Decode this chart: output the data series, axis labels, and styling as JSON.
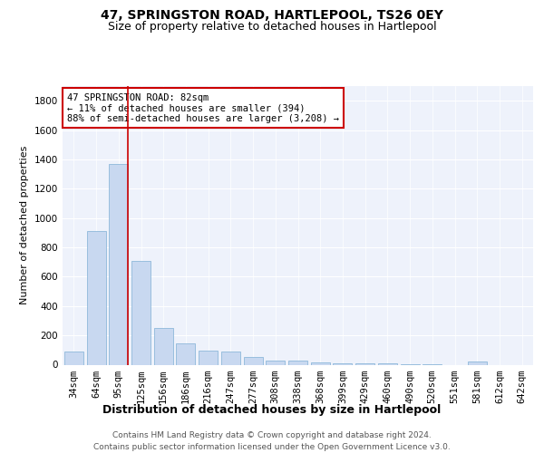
{
  "title1": "47, SPRINGSTON ROAD, HARTLEPOOL, TS26 0EY",
  "title2": "Size of property relative to detached houses in Hartlepool",
  "xlabel": "Distribution of detached houses by size in Hartlepool",
  "ylabel": "Number of detached properties",
  "categories": [
    "34sqm",
    "64sqm",
    "95sqm",
    "125sqm",
    "156sqm",
    "186sqm",
    "216sqm",
    "247sqm",
    "277sqm",
    "308sqm",
    "338sqm",
    "368sqm",
    "399sqm",
    "429sqm",
    "460sqm",
    "490sqm",
    "520sqm",
    "551sqm",
    "581sqm",
    "612sqm",
    "642sqm"
  ],
  "values": [
    90,
    910,
    1370,
    710,
    248,
    145,
    95,
    90,
    55,
    28,
    28,
    15,
    10,
    10,
    10,
    5,
    5,
    0,
    20,
    0,
    0
  ],
  "bar_color": "#c8d8f0",
  "bar_edge_color": "#7fafd4",
  "red_line_x": 2.43,
  "annotation_text": "47 SPRINGSTON ROAD: 82sqm\n← 11% of detached houses are smaller (394)\n88% of semi-detached houses are larger (3,208) →",
  "annotation_box_color": "#ffffff",
  "annotation_box_edge_color": "#cc0000",
  "footer": "Contains HM Land Registry data © Crown copyright and database right 2024.\nContains public sector information licensed under the Open Government Licence v3.0.",
  "ylim": [
    0,
    1900
  ],
  "yticks": [
    0,
    200,
    400,
    600,
    800,
    1000,
    1200,
    1400,
    1600,
    1800
  ],
  "bg_color": "#eef2fb",
  "grid_color": "#ffffff",
  "title1_fontsize": 10,
  "title2_fontsize": 9,
  "xlabel_fontsize": 9,
  "ylabel_fontsize": 8,
  "tick_fontsize": 7.5,
  "footer_fontsize": 6.5
}
